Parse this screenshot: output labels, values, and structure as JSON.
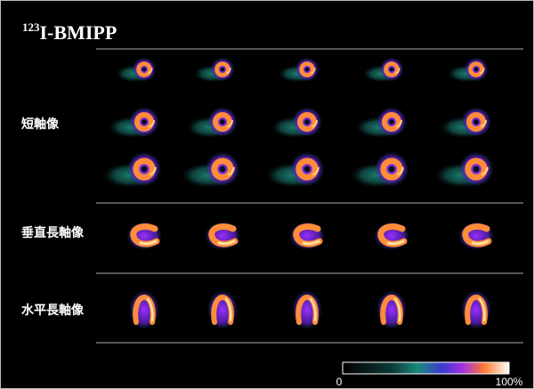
{
  "header": {
    "title": {
      "superscript": "123",
      "text": "I-BMIPP"
    }
  },
  "rows": [
    {
      "label": "短軸像"
    },
    {
      "label": "垂直長軸像"
    },
    {
      "label": "水平長軸像"
    }
  ],
  "colorbar": {
    "min_label": "0",
    "max_label": "100%"
  }
}
